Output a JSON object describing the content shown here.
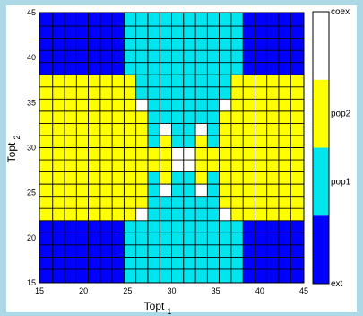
{
  "chart_data": {
    "type": "heatmap",
    "title": "",
    "xlabel": "Topt",
    "xlabel_subscript": "1",
    "ylabel": "Topt",
    "ylabel_subscript": "2",
    "xlim": [
      15,
      45
    ],
    "ylim": [
      15,
      45
    ],
    "xticks": [
      "15",
      "20",
      "25",
      "30",
      "35",
      "40",
      "45"
    ],
    "yticks": [
      "15",
      "20",
      "25",
      "30",
      "35",
      "40",
      "45"
    ],
    "cell_edges": [
      15,
      16.5,
      17.85,
      19.2,
      20.55,
      21.9,
      23.25,
      24.6,
      25.95,
      27.3,
      28.65,
      30,
      31.35,
      32.7,
      34.05,
      35.4,
      36.75,
      38.1,
      39.45,
      40.8,
      42.15,
      43.5,
      45
    ],
    "category_values": {
      "ext": 0,
      "pop1": 1,
      "pop2": 2,
      "coex": 3
    },
    "grid_rows_top_to_bottom": [
      [
        0,
        0,
        0,
        0,
        0,
        0,
        0,
        1,
        1,
        1,
        1,
        1,
        1,
        1,
        1,
        1,
        1,
        0,
        0,
        0,
        0,
        0
      ],
      [
        0,
        0,
        0,
        0,
        0,
        0,
        0,
        1,
        1,
        1,
        1,
        1,
        1,
        1,
        1,
        1,
        1,
        0,
        0,
        0,
        0,
        0
      ],
      [
        0,
        0,
        0,
        0,
        0,
        0,
        0,
        1,
        1,
        1,
        1,
        1,
        1,
        1,
        1,
        1,
        1,
        0,
        0,
        0,
        0,
        0
      ],
      [
        0,
        0,
        0,
        0,
        0,
        0,
        0,
        1,
        1,
        1,
        1,
        1,
        1,
        1,
        1,
        1,
        1,
        0,
        0,
        0,
        0,
        0
      ],
      [
        0,
        0,
        0,
        0,
        0,
        0,
        0,
        1,
        1,
        1,
        1,
        1,
        1,
        1,
        1,
        1,
        1,
        0,
        0,
        0,
        0,
        0
      ],
      [
        2,
        2,
        2,
        2,
        2,
        2,
        2,
        2,
        1,
        1,
        1,
        1,
        1,
        1,
        1,
        1,
        2,
        2,
        2,
        2,
        2,
        2
      ],
      [
        2,
        2,
        2,
        2,
        2,
        2,
        2,
        2,
        1,
        1,
        1,
        1,
        1,
        1,
        1,
        1,
        2,
        2,
        2,
        2,
        2,
        2
      ],
      [
        2,
        2,
        2,
        2,
        2,
        2,
        2,
        2,
        3,
        1,
        1,
        1,
        1,
        1,
        1,
        3,
        2,
        2,
        2,
        2,
        2,
        2
      ],
      [
        2,
        2,
        2,
        2,
        2,
        2,
        2,
        2,
        2,
        1,
        1,
        1,
        1,
        1,
        1,
        2,
        2,
        2,
        2,
        2,
        2,
        2
      ],
      [
        2,
        2,
        2,
        2,
        2,
        2,
        2,
        2,
        2,
        1,
        3,
        1,
        1,
        3,
        1,
        2,
        2,
        2,
        2,
        2,
        2,
        2
      ],
      [
        2,
        2,
        2,
        2,
        2,
        2,
        2,
        2,
        2,
        1,
        2,
        1,
        1,
        2,
        1,
        2,
        2,
        2,
        2,
        2,
        2,
        2
      ],
      [
        2,
        2,
        2,
        2,
        2,
        2,
        2,
        2,
        2,
        2,
        2,
        3,
        3,
        2,
        2,
        2,
        2,
        2,
        2,
        2,
        2,
        2
      ],
      [
        2,
        2,
        2,
        2,
        2,
        2,
        2,
        2,
        2,
        2,
        2,
        3,
        3,
        2,
        2,
        2,
        2,
        2,
        2,
        2,
        2,
        2
      ],
      [
        2,
        2,
        2,
        2,
        2,
        2,
        2,
        2,
        2,
        1,
        2,
        1,
        1,
        2,
        1,
        2,
        2,
        2,
        2,
        2,
        2,
        2
      ],
      [
        2,
        2,
        2,
        2,
        2,
        2,
        2,
        2,
        2,
        1,
        3,
        1,
        1,
        3,
        1,
        2,
        2,
        2,
        2,
        2,
        2,
        2
      ],
      [
        2,
        2,
        2,
        2,
        2,
        2,
        2,
        2,
        2,
        1,
        1,
        1,
        1,
        1,
        1,
        2,
        2,
        2,
        2,
        2,
        2,
        2
      ],
      [
        2,
        2,
        2,
        2,
        2,
        2,
        2,
        2,
        3,
        1,
        1,
        1,
        1,
        1,
        1,
        3,
        2,
        2,
        2,
        2,
        2,
        2
      ],
      [
        0,
        0,
        0,
        0,
        0,
        0,
        0,
        1,
        1,
        1,
        1,
        1,
        1,
        1,
        1,
        1,
        1,
        0,
        0,
        0,
        0,
        0
      ],
      [
        0,
        0,
        0,
        0,
        0,
        0,
        0,
        1,
        1,
        1,
        1,
        1,
        1,
        1,
        1,
        1,
        1,
        0,
        0,
        0,
        0,
        0
      ],
      [
        0,
        0,
        0,
        0,
        0,
        0,
        0,
        1,
        1,
        1,
        1,
        1,
        1,
        1,
        1,
        1,
        1,
        0,
        0,
        0,
        0,
        0
      ],
      [
        0,
        0,
        0,
        0,
        0,
        0,
        0,
        1,
        1,
        1,
        1,
        1,
        1,
        1,
        1,
        1,
        1,
        0,
        0,
        0,
        0,
        0
      ],
      [
        0,
        0,
        0,
        0,
        0,
        0,
        0,
        1,
        1,
        1,
        1,
        1,
        1,
        1,
        1,
        1,
        1,
        0,
        0,
        0,
        0,
        0
      ]
    ],
    "colorbar": {
      "labels": [
        "ext",
        "pop1",
        "pop2",
        "coex"
      ],
      "colors": [
        "#0000ff",
        "#00e5ee",
        "#ffff00",
        "#ffffff"
      ]
    },
    "grid": true,
    "legend": "right"
  }
}
